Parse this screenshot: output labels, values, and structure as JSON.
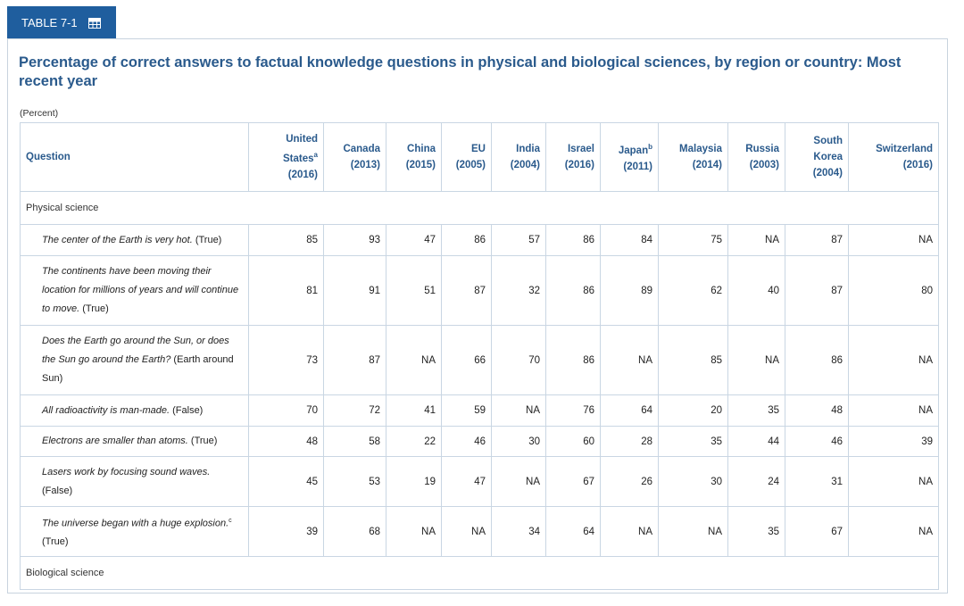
{
  "tab": {
    "label": "TABLE 7-1",
    "icon": "table-grid-icon"
  },
  "title": "Percentage of correct answers to factual knowledge questions in physical and biological sciences, by region or country: Most recent year",
  "unit": "(Percent)",
  "header": {
    "question": "Question",
    "columns": [
      {
        "name": "United States",
        "sup": "a",
        "year": "(2016)"
      },
      {
        "name": "Canada",
        "sup": "",
        "year": "(2013)"
      },
      {
        "name": "China",
        "sup": "",
        "year": "(2015)"
      },
      {
        "name": "EU",
        "sup": "",
        "year": "(2005)"
      },
      {
        "name": "India",
        "sup": "",
        "year": "(2004)"
      },
      {
        "name": "Israel",
        "sup": "",
        "year": "(2016)"
      },
      {
        "name": "Japan",
        "sup": "b",
        "year": "(2011)"
      },
      {
        "name": "Malaysia",
        "sup": "",
        "year": "(2014)"
      },
      {
        "name": "Russia",
        "sup": "",
        "year": "(2003)"
      },
      {
        "name": "South Korea",
        "sup": "",
        "year": "(2004)"
      },
      {
        "name": "Switzerland",
        "sup": "",
        "year": "(2016)"
      }
    ]
  },
  "sections": [
    {
      "label": "Physical science",
      "rows": [
        {
          "q": "The center of the Earth is very hot.",
          "sup": "",
          "answer": "(True)",
          "values": [
            "85",
            "93",
            "47",
            "86",
            "57",
            "86",
            "84",
            "75",
            "NA",
            "87",
            "NA"
          ]
        },
        {
          "q": "The continents have been moving their location for millions of years and will continue to move.",
          "sup": "",
          "answer": "(True)",
          "values": [
            "81",
            "91",
            "51",
            "87",
            "32",
            "86",
            "89",
            "62",
            "40",
            "87",
            "80"
          ]
        },
        {
          "q": "Does the Earth go around the Sun, or does the Sun go around the Earth?",
          "sup": "",
          "answer": "(Earth around Sun)",
          "values": [
            "73",
            "87",
            "NA",
            "66",
            "70",
            "86",
            "NA",
            "85",
            "NA",
            "86",
            "NA"
          ]
        },
        {
          "q": "All radioactivity is man-made.",
          "sup": "",
          "answer": "(False)",
          "values": [
            "70",
            "72",
            "41",
            "59",
            "NA",
            "76",
            "64",
            "20",
            "35",
            "48",
            "NA"
          ]
        },
        {
          "q": "Electrons are smaller than atoms.",
          "sup": "",
          "answer": "(True)",
          "values": [
            "48",
            "58",
            "22",
            "46",
            "30",
            "60",
            "28",
            "35",
            "44",
            "46",
            "39"
          ]
        },
        {
          "q": "Lasers work by focusing sound waves.",
          "sup": "",
          "answer": "(False)",
          "values": [
            "45",
            "53",
            "19",
            "47",
            "NA",
            "67",
            "26",
            "30",
            "24",
            "31",
            "NA"
          ]
        },
        {
          "q": "The universe began with a huge explosion.",
          "sup": "c",
          "answer": "(True)",
          "values": [
            "39",
            "68",
            "NA",
            "NA",
            "34",
            "64",
            "NA",
            "NA",
            "35",
            "67",
            "NA"
          ]
        }
      ]
    },
    {
      "label": "Biological science",
      "rows": []
    }
  ]
}
